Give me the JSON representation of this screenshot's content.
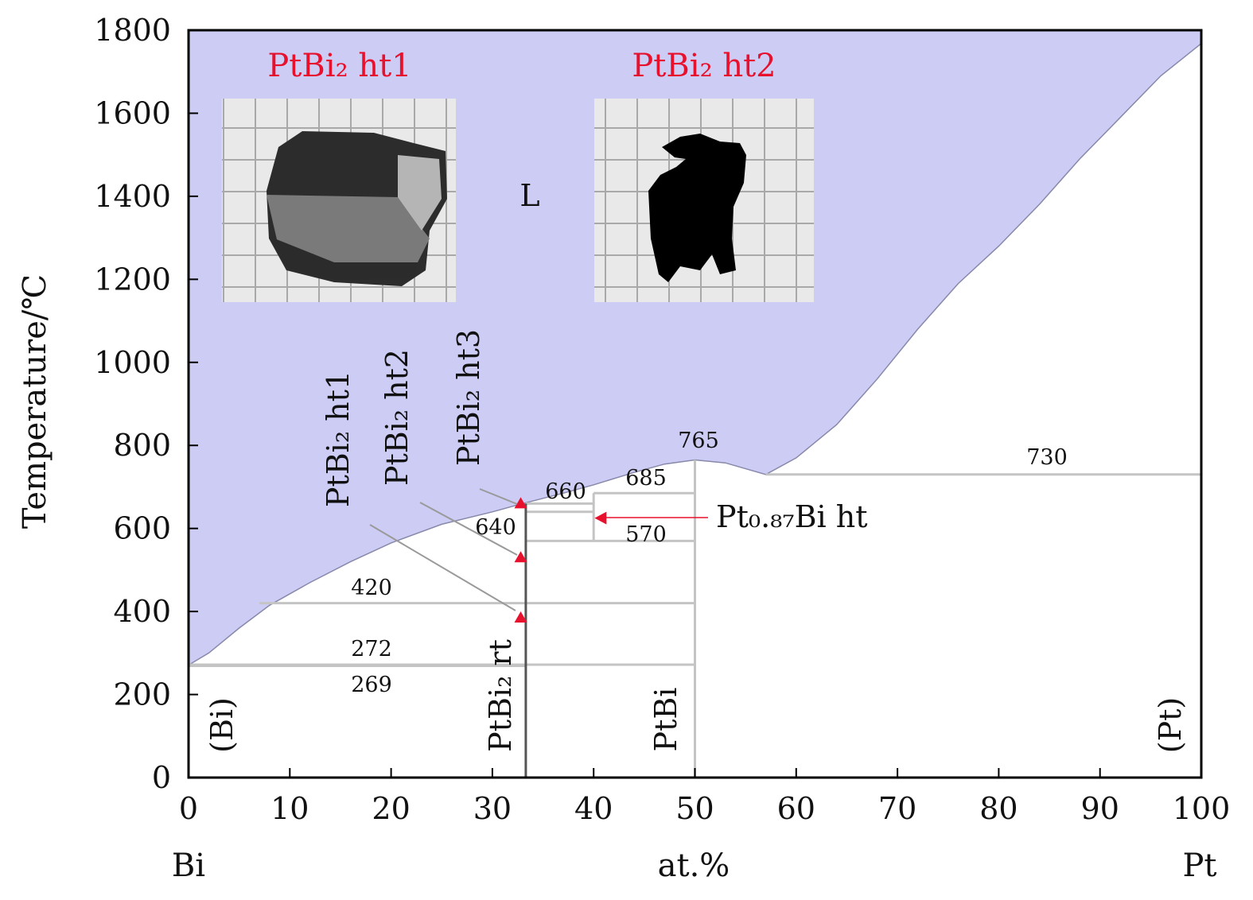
{
  "chart_data": {
    "type": "phase-diagram",
    "xlabel": "at.%",
    "ylabel": "Temperature/℃",
    "x_left_element": "Bi",
    "x_right_element": "Pt",
    "xlim": [
      0,
      100
    ],
    "ylim": [
      0,
      1800
    ],
    "xticks": [
      "0",
      "10",
      "20",
      "30",
      "40",
      "50",
      "60",
      "70",
      "80",
      "90",
      "100"
    ],
    "yticks": [
      "0",
      "200",
      "400",
      "600",
      "800",
      "1000",
      "1200",
      "1400",
      "1600",
      "1800"
    ],
    "liquidus": [
      {
        "x": 0,
        "y": 271
      },
      {
        "x": 2,
        "y": 300
      },
      {
        "x": 5,
        "y": 360
      },
      {
        "x": 8,
        "y": 415
      },
      {
        "x": 12,
        "y": 470
      },
      {
        "x": 16,
        "y": 520
      },
      {
        "x": 20,
        "y": 565
      },
      {
        "x": 25,
        "y": 610
      },
      {
        "x": 30,
        "y": 640
      },
      {
        "x": 33,
        "y": 660
      },
      {
        "x": 37,
        "y": 685
      },
      {
        "x": 40,
        "y": 705
      },
      {
        "x": 44,
        "y": 735
      },
      {
        "x": 47,
        "y": 755
      },
      {
        "x": 50,
        "y": 765
      },
      {
        "x": 53,
        "y": 758
      },
      {
        "x": 57,
        "y": 730
      },
      {
        "x": 60,
        "y": 770
      },
      {
        "x": 64,
        "y": 850
      },
      {
        "x": 68,
        "y": 960
      },
      {
        "x": 72,
        "y": 1080
      },
      {
        "x": 76,
        "y": 1190
      },
      {
        "x": 80,
        "y": 1280
      },
      {
        "x": 84,
        "y": 1380
      },
      {
        "x": 88,
        "y": 1490
      },
      {
        "x": 92,
        "y": 1590
      },
      {
        "x": 96,
        "y": 1690
      },
      {
        "x": 100,
        "y": 1768
      }
    ],
    "invariant_lines": [
      {
        "x1": 0,
        "x2": 33.3,
        "y": 269,
        "label": "269"
      },
      {
        "x1": 0,
        "x2": 50,
        "y": 272,
        "label": "272"
      },
      {
        "x1": 7,
        "x2": 50,
        "y": 420,
        "label": "420"
      },
      {
        "x1": 33.3,
        "x2": 50,
        "y": 570,
        "label": "570"
      },
      {
        "x1": 33.3,
        "x2": 40,
        "y": 640,
        "label": "640"
      },
      {
        "x1": 33.3,
        "x2": 40,
        "y": 660,
        "label": "660"
      },
      {
        "x1": 40,
        "x2": 50,
        "y": 685,
        "label": "685"
      },
      {
        "x1": 57,
        "x2": 100,
        "y": 730,
        "label": "730"
      }
    ],
    "compound_lines": [
      {
        "x": 33.3,
        "ymin": 0,
        "ymax": 660,
        "label": "PtBi₂ rt"
      },
      {
        "x": 40,
        "ymin": 570,
        "ymax": 685,
        "label": ""
      },
      {
        "x": 50,
        "ymin": 0,
        "ymax": 765,
        "label": "PtBi"
      }
    ],
    "temperature_labels": [
      "765",
      "730",
      "685",
      "660",
      "640",
      "570",
      "420",
      "272",
      "269"
    ],
    "phase_regions": {
      "liquid": "L",
      "bi": "(Bi)",
      "pt": "(Pt)"
    },
    "markers": [
      {
        "x": 32.8,
        "y": 660,
        "label": "PtBi₂ ht3"
      },
      {
        "x": 32.8,
        "y": 530,
        "label": "PtBi₂ ht2"
      },
      {
        "x": 32.8,
        "y": 385,
        "label": "PtBi₂ ht1"
      },
      {
        "x": 40.8,
        "y": 625,
        "label": "Pt₀.₈₇Bi ht"
      }
    ],
    "insets": [
      {
        "label": "PtBi₂ ht1"
      },
      {
        "label": "PtBi₂ ht2"
      }
    ],
    "colors": {
      "liquid_fill": "#ccccf5",
      "marker": "#e8112d",
      "inset_label": "#e8112d"
    }
  }
}
